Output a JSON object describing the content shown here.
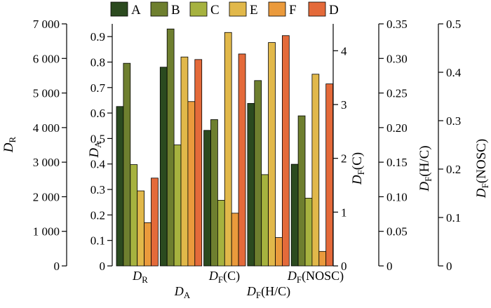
{
  "chart_data": {
    "type": "bar",
    "title": "",
    "legend_position": "top",
    "grid": false,
    "series_order": [
      "A",
      "B",
      "C",
      "E",
      "F",
      "D"
    ],
    "series": [
      {
        "name": "A",
        "color": "#2b4a1f"
      },
      {
        "name": "B",
        "color": "#6e7f2f"
      },
      {
        "name": "C",
        "color": "#a6b23f"
      },
      {
        "name": "E",
        "color": "#e1b84a"
      },
      {
        "name": "F",
        "color": "#ea9a3c"
      },
      {
        "name": "D",
        "color": "#e46a3a"
      }
    ],
    "groups": [
      {
        "label_main": "D",
        "label_sub": "R",
        "axis": "D_R",
        "values": {
          "A": 4610,
          "B": 5860,
          "C": 2930,
          "E": 2170,
          "F": 1250,
          "D": 2540
        }
      },
      {
        "label_main": "D",
        "label_sub": "A",
        "axis": "D_A",
        "values": {
          "A": 0.78,
          "B": 0.93,
          "C": 0.475,
          "E": 0.82,
          "F": 0.645,
          "D": 0.81
        }
      },
      {
        "label_main": "D",
        "label_sub": "F",
        "label_suffix": "(C)",
        "axis": "D_F_C",
        "values": {
          "A": 2.52,
          "B": 2.72,
          "C": 1.22,
          "E": 4.34,
          "F": 0.98,
          "D": 3.94
        }
      },
      {
        "label_main": "D",
        "label_sub": "F",
        "label_suffix": "(H/C)",
        "axis": "D_F_HC",
        "values": {
          "A": 0.235,
          "B": 0.268,
          "C": 0.132,
          "E": 0.323,
          "F": 0.041,
          "D": 0.333
        }
      },
      {
        "label_main": "D",
        "label_sub": "F",
        "label_suffix": "(NOSC)",
        "axis": "D_F_NOSC",
        "values": {
          "A": 0.21,
          "B": 0.31,
          "C": 0.14,
          "E": 0.396,
          "F": 0.03,
          "D": 0.376
        }
      }
    ],
    "axes": [
      {
        "id": "D_R",
        "title_main": "D",
        "title_sub": "R",
        "title_suffix": "",
        "ylim": [
          0,
          7000
        ],
        "ticks": [
          "0",
          "1 000",
          "2 000",
          "3 000",
          "4 000",
          "5 000",
          "6 000",
          "7 000"
        ],
        "tick_values": [
          0,
          1000,
          2000,
          3000,
          4000,
          5000,
          6000,
          7000
        ]
      },
      {
        "id": "D_A",
        "title_main": "D",
        "title_sub": "A",
        "title_suffix": "",
        "ylim": [
          0,
          0.95
        ],
        "ticks": [
          "0",
          "0.1",
          "0.2",
          "0.3",
          "0.4",
          "0.5",
          "0.6",
          "0.7",
          "0.8",
          "0.9"
        ],
        "tick_values": [
          0,
          0.1,
          0.2,
          0.3,
          0.4,
          0.5,
          0.6,
          0.7,
          0.8,
          0.9
        ]
      },
      {
        "id": "D_F_C",
        "title_main": "D",
        "title_sub": "F",
        "title_suffix": "(C)",
        "ylim": [
          0,
          4.5
        ],
        "ticks": [
          "0",
          "1",
          "2",
          "3",
          "4"
        ],
        "tick_values": [
          0,
          1,
          2,
          3,
          4
        ]
      },
      {
        "id": "D_F_HC",
        "title_main": "D",
        "title_sub": "F",
        "title_suffix": "(H/C)",
        "ylim": [
          0,
          0.35
        ],
        "ticks": [
          "0",
          "0.05",
          "0.10",
          "0.15",
          "0.20",
          "0.25",
          "0.30",
          "0.35"
        ],
        "tick_values": [
          0,
          0.05,
          0.1,
          0.15,
          0.2,
          0.25,
          0.3,
          0.35
        ]
      },
      {
        "id": "D_F_NOSC",
        "title_main": "D",
        "title_sub": "F",
        "title_suffix": "(NOSC)",
        "ylim": [
          0,
          0.5
        ],
        "ticks": [
          "0",
          "0.1",
          "0.2",
          "0.3",
          "0.4",
          "0.5"
        ],
        "tick_values": [
          0,
          0.1,
          0.2,
          0.3,
          0.4,
          0.5
        ]
      }
    ]
  }
}
